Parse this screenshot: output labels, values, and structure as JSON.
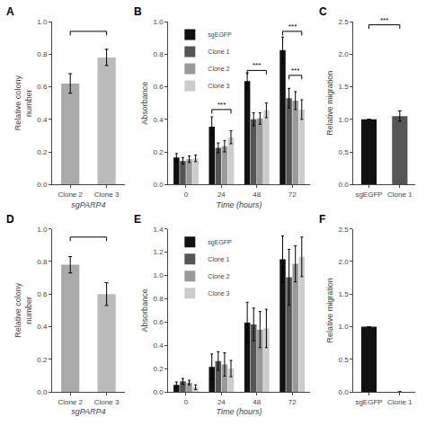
{
  "chart_data": [
    {
      "type": "bar",
      "title": "A",
      "categories": [
        "Clone 2",
        "Clone 3"
      ],
      "values": [
        0.62,
        0.78
      ],
      "errors": [
        0.06,
        0.05
      ],
      "colors": [
        "#aaaaaa",
        "#bbbbbb"
      ],
      "xlabel": "sgPARP4",
      "ylabel": "Relative colony\nnumber",
      "ylim": [
        0,
        1.0
      ],
      "yticks": [
        {
          "value": 0,
          "label": "0.0"
        },
        0.2,
        0.4,
        0.6,
        0.8,
        {
          "value": 1,
          "label": "1.0"
        }
      ],
      "grid": false,
      "brackets": [
        {
          "from": "Clone 2",
          "to": "Clone 3",
          "y": 0.94
        }
      ]
    },
    {
      "type": "bar",
      "title": "B",
      "categories": [
        "0",
        "24",
        "48",
        "72"
      ],
      "series": [
        {
          "name": "sgEGFP",
          "color": "#111111",
          "values": [
            0.165,
            0.355,
            0.635,
            0.825
          ],
          "errors": [
            0.025,
            0.06,
            0.05,
            0.08
          ]
        },
        {
          "name": "Clone 1",
          "color": "#555555",
          "values": [
            0.145,
            0.225,
            0.4,
            0.53
          ],
          "errors": [
            0.02,
            0.03,
            0.04,
            0.06
          ]
        },
        {
          "name": "Clone 2",
          "color": "#999999",
          "values": [
            0.155,
            0.235,
            0.405,
            0.515
          ],
          "errors": [
            0.02,
            0.035,
            0.035,
            0.055
          ]
        },
        {
          "name": "Clone 3",
          "color": "#cccccc",
          "values": [
            0.16,
            0.29,
            0.455,
            0.46
          ],
          "errors": [
            0.02,
            0.04,
            0.045,
            0.06
          ]
        }
      ],
      "xlabel": "Time (hours)",
      "ylabel": "Absorbance",
      "ylim": [
        0,
        1.0
      ],
      "yticks": [
        {
          "value": 0,
          "label": "0.0"
        },
        0.2,
        0.4,
        0.6,
        0.8,
        {
          "value": 1,
          "label": "1.0"
        }
      ],
      "grid": false,
      "legend": "upper left",
      "brackets": [
        {
          "category": "24",
          "from": "sgEGFP",
          "to": "Clone 3",
          "y": 0.46,
          "label": "***"
        },
        {
          "category": "48",
          "from": "sgEGFP",
          "to": "Clone 3",
          "y": 0.7,
          "label": "***"
        },
        {
          "category": "72",
          "from": "sgEGFP",
          "to": "Clone 3",
          "y": 0.94,
          "label": "***"
        },
        {
          "category": "72",
          "from": "Clone 1",
          "to": "Clone 3",
          "y": 0.67,
          "label": "***"
        }
      ]
    },
    {
      "type": "bar",
      "title": "C",
      "categories": [
        "sgEGFP",
        "Clone 1"
      ],
      "values": [
        1.0,
        1.05
      ],
      "errors": [
        0.0,
        0.08
      ],
      "colors": [
        "#111111",
        "#555555"
      ],
      "ylabel": "Relative migration",
      "ylim": [
        0,
        2.5
      ],
      "yticks": [
        {
          "value": 0,
          "label": "0.0"
        },
        0.5,
        {
          "value": 1,
          "label": "1.0"
        },
        1.5,
        {
          "value": 2,
          "label": "2.0"
        },
        2.5
      ],
      "grid": false,
      "brackets": [
        {
          "from": "sgEGFP",
          "to": "Clone 1",
          "y": 2.45,
          "label": "***"
        }
      ]
    },
    {
      "type": "bar",
      "title": "D",
      "categories": [
        "Clone 2",
        "Clone 3"
      ],
      "values": [
        0.78,
        0.6
      ],
      "errors": [
        0.05,
        0.07
      ],
      "colors": [
        "#aaaaaa",
        "#bbbbbb"
      ],
      "xlabel": "sgPARP4",
      "ylabel": "Relative colony\nnumber",
      "ylim": [
        0,
        1.0
      ],
      "yticks": [
        {
          "value": 0,
          "label": "0.0"
        },
        0.2,
        0.4,
        0.6,
        0.8,
        {
          "value": 1,
          "label": "1.0"
        }
      ],
      "grid": false,
      "brackets": [
        {
          "from": "Clone 2",
          "to": "Clone 3",
          "y": 0.95
        }
      ]
    },
    {
      "type": "bar",
      "title": "E",
      "categories": [
        "0",
        "24",
        "48",
        "72"
      ],
      "series": [
        {
          "name": "sgEGFP",
          "color": "#111111",
          "values": [
            0.06,
            0.215,
            0.595,
            1.14
          ],
          "errors": [
            0.025,
            0.11,
            0.175,
            0.2
          ]
        },
        {
          "name": "Clone 1",
          "color": "#555555",
          "values": [
            0.09,
            0.265,
            0.58,
            0.985
          ],
          "errors": [
            0.025,
            0.08,
            0.14,
            0.24
          ]
        },
        {
          "name": "Clone 2",
          "color": "#999999",
          "values": [
            0.08,
            0.235,
            0.535,
            1.1
          ],
          "errors": [
            0.02,
            0.1,
            0.155,
            0.155
          ]
        },
        {
          "name": "Clone 3",
          "color": "#cccccc",
          "values": [
            0.04,
            0.2,
            0.545,
            1.16
          ],
          "errors": [
            0.02,
            0.07,
            0.165,
            0.17
          ]
        }
      ],
      "xlabel": "Time (hours)",
      "ylabel": "Absorbance",
      "ylim": [
        0,
        1.4
      ],
      "yticks": [
        {
          "value": 0,
          "label": "0.0"
        },
        0.2,
        0.4,
        0.6,
        0.8,
        {
          "value": 1,
          "label": "1.0"
        },
        1.2,
        1.4
      ],
      "grid": false,
      "legend": "upper left"
    },
    {
      "type": "bar",
      "title": "F",
      "categories": [
        "sgEGFP",
        "Clone 1"
      ],
      "values": [
        1.0,
        0.0
      ],
      "errors": [
        0.0,
        0.0
      ],
      "colors": [
        "#111111",
        "#555555"
      ],
      "ylabel": "Relative migration",
      "ylim": [
        0,
        2.5
      ],
      "yticks": [
        {
          "value": 0,
          "label": "0.0"
        },
        0.5,
        {
          "value": 1,
          "label": "1.0"
        },
        1.5,
        {
          "value": 2,
          "label": "2.0"
        },
        2.5
      ],
      "grid": false
    }
  ]
}
